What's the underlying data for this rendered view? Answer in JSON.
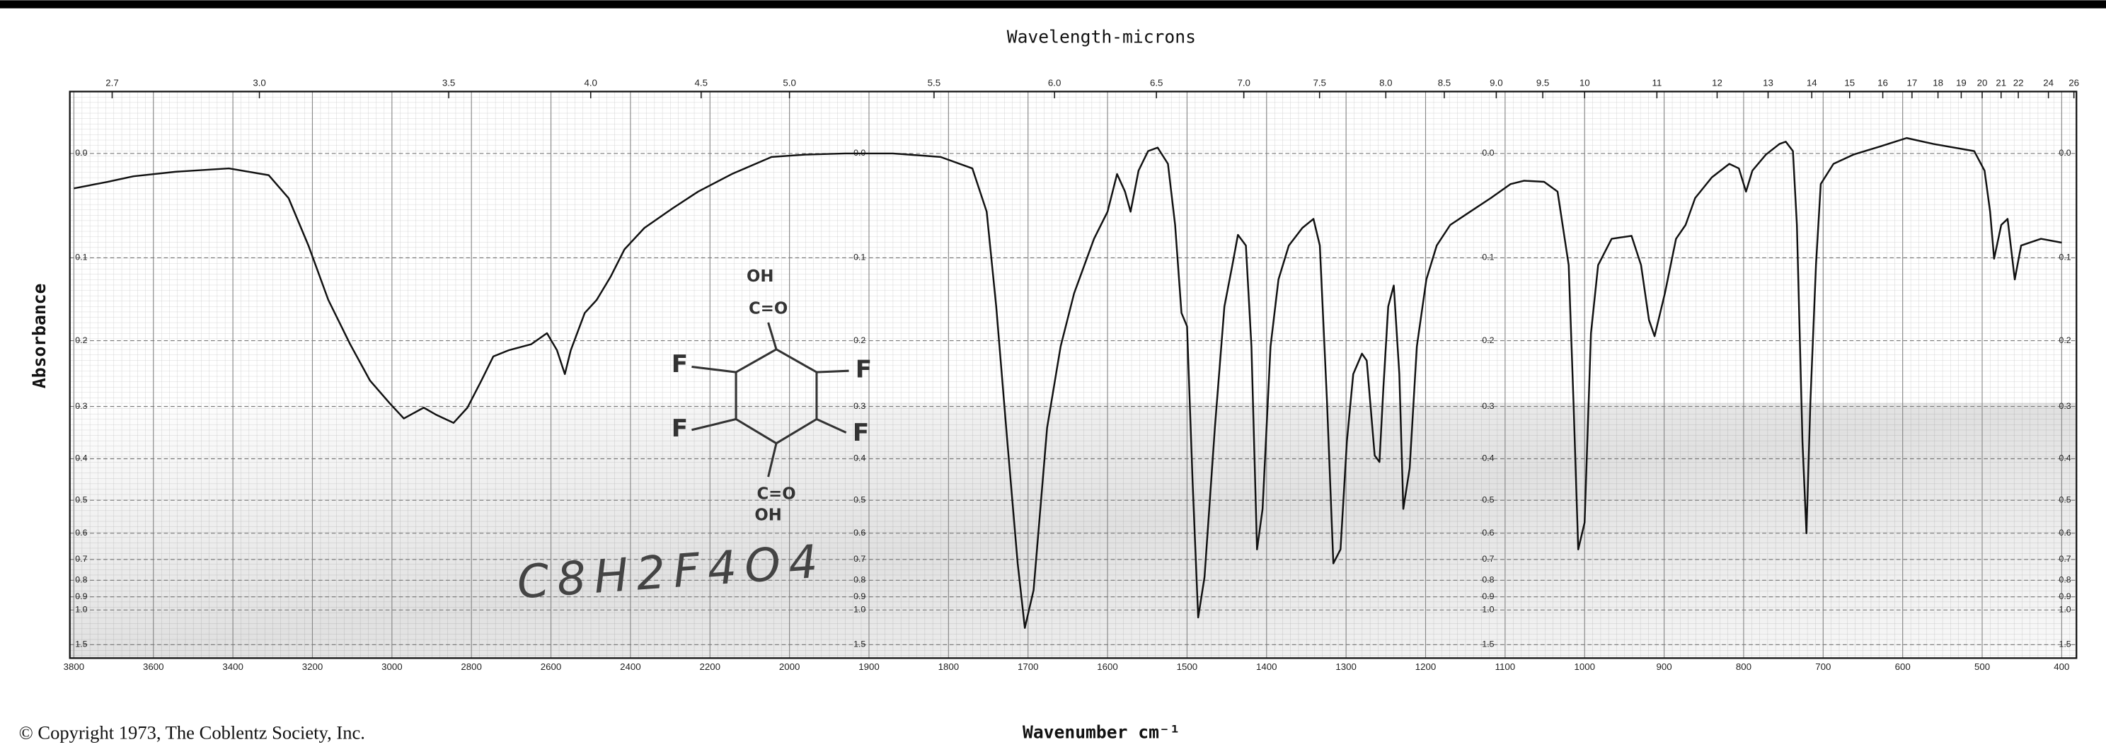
{
  "chart_data": {
    "type": "line",
    "x2_label": "Wavelength-microns",
    "x_label": "Wavenumber cm⁻¹",
    "y_label": "Absorbance",
    "copyright": "© Copyright 1973, The Coblentz Society, Inc.",
    "formula": "C8H2F4O4",
    "structure_labels": [
      "OH",
      "C=O",
      "F",
      "F",
      "F",
      "F",
      "C=O",
      "OH"
    ],
    "color": "#111111",
    "xscale": "tick-spaced",
    "yscale": "transmittance",
    "grid": true,
    "xlim": [
      3800,
      400
    ],
    "xticks": [
      3800,
      3600,
      3400,
      3200,
      3000,
      2800,
      2600,
      2400,
      2200,
      2000,
      1900,
      1800,
      1700,
      1600,
      1500,
      1400,
      1300,
      1200,
      1100,
      1000,
      900,
      800,
      700,
      600,
      500,
      400
    ],
    "x2ticks": [
      2.7,
      {
        "value": 3,
        "label": "3.0"
      },
      3.5,
      {
        "value": 4,
        "label": "4.0"
      },
      4.5,
      {
        "value": 5,
        "label": "5.0"
      },
      5.5,
      {
        "value": 6,
        "label": "6.0"
      },
      6.5,
      {
        "value": 7,
        "label": "7.0"
      },
      7.5,
      {
        "value": 8,
        "label": "8.0"
      },
      8.5,
      {
        "value": 9,
        "label": "9.0"
      },
      9.5,
      10,
      11,
      12,
      13,
      14,
      15,
      16,
      17,
      18,
      19,
      20,
      21,
      22,
      24,
      26
    ],
    "ylim": [
      2.3,
      -0.05
    ],
    "yticks": [
      {
        "value": 0,
        "label": "0.0"
      },
      0.1,
      0.2,
      0.3,
      0.4,
      0.5,
      0.6,
      0.7,
      0.8,
      0.9,
      {
        "value": 1,
        "label": "1.0"
      },
      1.5
    ],
    "x": [
      3800,
      3715,
      3650,
      3545,
      3410,
      3310,
      3260,
      3210,
      3160,
      3105,
      3055,
      3005,
      2970,
      2920,
      2890,
      2845,
      2810,
      2775,
      2745,
      2705,
      2650,
      2610,
      2585,
      2565,
      2550,
      2515,
      2485,
      2450,
      2415,
      2365,
      2295,
      2230,
      2145,
      2045,
      1980,
      1930,
      1870,
      1810,
      1770,
      1752,
      1740,
      1726,
      1713,
      1704,
      1693,
      1676,
      1659,
      1642,
      1617,
      1600,
      1588,
      1578,
      1571,
      1561,
      1549,
      1537,
      1524,
      1515,
      1507,
      1500,
      1493,
      1486,
      1478,
      1465,
      1453,
      1443,
      1436,
      1426,
      1419,
      1412,
      1405,
      1395,
      1385,
      1372,
      1355,
      1341,
      1333,
      1324,
      1316,
      1307,
      1299,
      1291,
      1280,
      1274,
      1264,
      1258,
      1253,
      1247,
      1240,
      1233,
      1228,
      1220,
      1211,
      1199,
      1186,
      1169,
      1144,
      1118,
      1093,
      1076,
      1051,
      1034,
      1020,
      1014,
      1008,
      1000,
      992,
      983,
      966,
      941,
      929,
      919,
      912,
      899,
      885,
      873,
      861,
      840,
      818,
      806,
      797,
      789,
      772,
      755,
      747,
      738,
      733,
      726,
      721,
      716,
      709,
      703,
      687,
      662,
      628,
      595,
      561,
      510,
      497,
      490,
      485,
      476,
      468,
      459,
      451,
      426,
      400
    ],
    "values": [
      0.031,
      0.025,
      0.02,
      0.016,
      0.013,
      0.019,
      0.04,
      0.087,
      0.148,
      0.205,
      0.258,
      0.295,
      0.321,
      0.302,
      0.314,
      0.329,
      0.302,
      0.258,
      0.222,
      0.213,
      0.205,
      0.19,
      0.213,
      0.248,
      0.213,
      0.164,
      0.148,
      0.121,
      0.091,
      0.069,
      0.05,
      0.034,
      0.018,
      0.003,
      0.001,
      0,
      0,
      0.003,
      0.013,
      0.053,
      0.156,
      0.365,
      0.717,
      1.19,
      0.857,
      0.338,
      0.208,
      0.14,
      0.08,
      0.053,
      0.018,
      0.034,
      0.053,
      0.015,
      -0.002,
      -0.005,
      0.009,
      0.066,
      0.164,
      0.181,
      0.453,
      1.07,
      0.783,
      0.338,
      0.156,
      0.108,
      0.076,
      0.087,
      0.208,
      0.659,
      0.524,
      0.208,
      0.124,
      0.087,
      0.069,
      0.06,
      0.087,
      0.291,
      0.717,
      0.659,
      0.365,
      0.248,
      0.218,
      0.228,
      0.393,
      0.407,
      0.268,
      0.156,
      0.131,
      0.248,
      0.524,
      0.421,
      0.208,
      0.124,
      0.087,
      0.066,
      0.053,
      0.04,
      0.027,
      0.024,
      0.025,
      0.034,
      0.108,
      0.291,
      0.659,
      0.565,
      0.19,
      0.108,
      0.08,
      0.077,
      0.108,
      0.173,
      0.194,
      0.14,
      0.08,
      0.066,
      0.04,
      0.021,
      0.009,
      0.013,
      0.034,
      0.015,
      0.001,
      -0.008,
      -0.01,
      -0.002,
      0.066,
      0.365,
      0.6,
      0.291,
      0.108,
      0.027,
      0.009,
      0.001,
      -0.006,
      -0.013,
      -0.008,
      -0.002,
      0.015,
      0.053,
      0.101,
      0.066,
      0.06,
      0.124,
      0.087,
      0.08,
      0.084
    ]
  }
}
